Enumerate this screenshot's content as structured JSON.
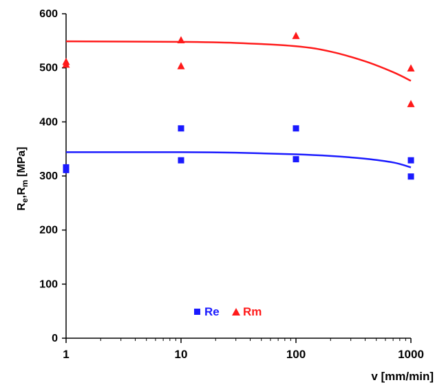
{
  "chart_data": {
    "type": "scatter",
    "title": "",
    "x_scale": "log",
    "xlabel": "v [mm/min]",
    "ylabel_parts": {
      "r1": "R",
      "sub1": "e",
      "comma": ",",
      "r2": "R",
      "sub2": "m",
      "unit": " [MPa]"
    },
    "xlim": [
      1,
      1000
    ],
    "ylim": [
      0,
      600
    ],
    "x_ticks": [
      {
        "value": 1,
        "label": "1"
      },
      {
        "value": 10,
        "label": "10"
      },
      {
        "value": 100,
        "label": "100"
      },
      {
        "value": 1000,
        "label": "1000"
      }
    ],
    "y_ticks": [
      {
        "value": 0,
        "label": "0"
      },
      {
        "value": 100,
        "label": "100"
      },
      {
        "value": 200,
        "label": "200"
      },
      {
        "value": 300,
        "label": "300"
      },
      {
        "value": 400,
        "label": "400"
      },
      {
        "value": 500,
        "label": "500"
      },
      {
        "value": 600,
        "label": "600"
      }
    ],
    "grid": false,
    "legend_position": "bottom-center",
    "series": [
      {
        "name": "Re",
        "marker": "square",
        "color": "#1a1aff",
        "points": [
          {
            "x": 1,
            "y": 316
          },
          {
            "x": 1,
            "y": 311
          },
          {
            "x": 10,
            "y": 388
          },
          {
            "x": 10,
            "y": 329
          },
          {
            "x": 100,
            "y": 388
          },
          {
            "x": 100,
            "y": 331
          },
          {
            "x": 1000,
            "y": 329
          },
          {
            "x": 1000,
            "y": 299
          }
        ],
        "trend": [
          {
            "x": 1,
            "y": 344
          },
          {
            "x": 10,
            "y": 344
          },
          {
            "x": 30,
            "y": 343
          },
          {
            "x": 100,
            "y": 340
          },
          {
            "x": 200,
            "y": 337
          },
          {
            "x": 400,
            "y": 332
          },
          {
            "x": 700,
            "y": 325
          },
          {
            "x": 1000,
            "y": 316
          }
        ]
      },
      {
        "name": "Rm",
        "marker": "triangle",
        "color": "#ff1a1a",
        "points": [
          {
            "x": 1,
            "y": 511
          },
          {
            "x": 1,
            "y": 506
          },
          {
            "x": 10,
            "y": 551
          },
          {
            "x": 10,
            "y": 503
          },
          {
            "x": 100,
            "y": 559
          },
          {
            "x": 1000,
            "y": 499
          },
          {
            "x": 1000,
            "y": 433
          }
        ],
        "trend": [
          {
            "x": 1,
            "y": 549
          },
          {
            "x": 10,
            "y": 548
          },
          {
            "x": 30,
            "y": 546
          },
          {
            "x": 100,
            "y": 540
          },
          {
            "x": 200,
            "y": 530
          },
          {
            "x": 400,
            "y": 512
          },
          {
            "x": 700,
            "y": 492
          },
          {
            "x": 1000,
            "y": 476
          }
        ]
      }
    ]
  }
}
